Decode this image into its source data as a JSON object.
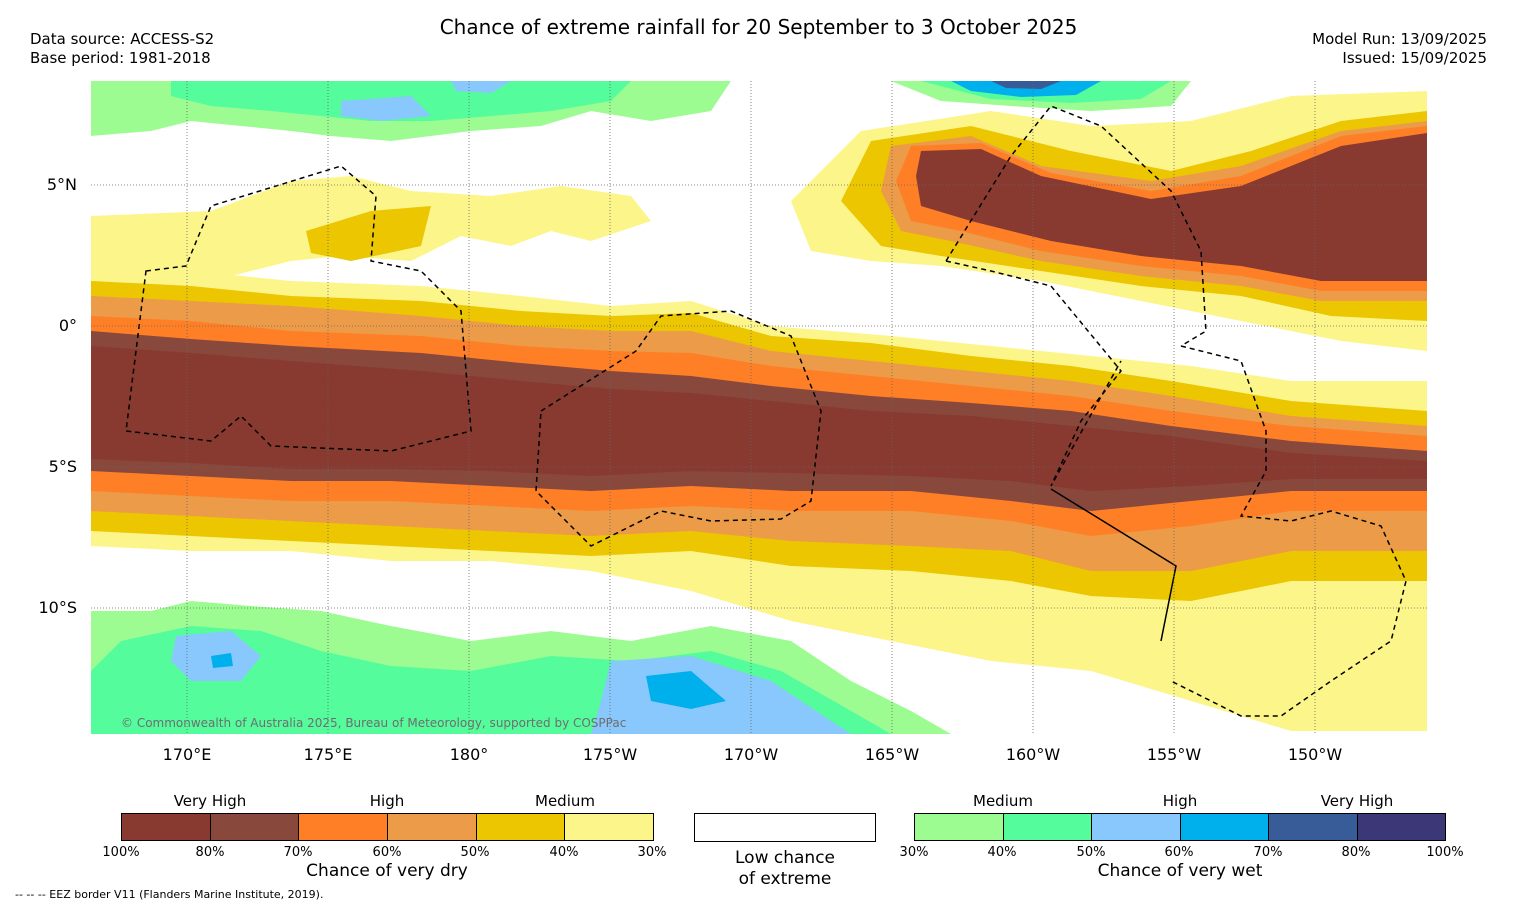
{
  "header": {
    "title": "Chance of extreme rainfall for 20 September to 3 October 2025",
    "data_source": "Data source: ACCESS-S2",
    "base_period": "Base period: 1981-2018",
    "model_run": "Model Run: 13/09/2025",
    "issued": "Issued: 15/09/2025"
  },
  "map": {
    "lat_labels": [
      "5°N",
      "0°",
      "5°S",
      "10°S"
    ],
    "lon_labels": [
      "170°E",
      "175°E",
      "180°",
      "175°W",
      "170°W",
      "165°W",
      "160°W",
      "155°W",
      "150°W"
    ],
    "copyright": "© Commonwealth of Australia 2025, Bureau of Meteorology, supported by COSPPac",
    "colors": {
      "dry_very_high_100_80": "#883a30",
      "dry_very_high_80_70": "#88483c",
      "dry_high_70_60": "#ff7f27",
      "dry_high_60_50": "#ec9b48",
      "dry_medium_50_40": "#ecc600",
      "dry_medium_40_30": "#fcf58a",
      "wet_medium_30_40": "#9cfc92",
      "wet_medium_40_50": "#54fc9c",
      "wet_high_50_60": "#88c8fc",
      "wet_high_60_70": "#00b0ec",
      "wet_very_high_70_80": "#385c98",
      "wet_very_high_80_100": "#3c3878"
    }
  },
  "legend": {
    "dry": {
      "group_labels": [
        "Very High",
        "High",
        "Medium"
      ],
      "ticks": [
        "100%",
        "80%",
        "70%",
        "60%",
        "50%",
        "40%",
        "30%"
      ],
      "caption": "Chance of very dry",
      "colors": [
        "#883a30",
        "#88483c",
        "#ff7f27",
        "#ec9b48",
        "#ecc600",
        "#fcf58a"
      ]
    },
    "low": {
      "caption_line1": "Low chance",
      "caption_line2": "of extreme"
    },
    "wet": {
      "group_labels": [
        "Medium",
        "High",
        "Very High"
      ],
      "ticks": [
        "30%",
        "40%",
        "50%",
        "60%",
        "70%",
        "80%",
        "100%"
      ],
      "caption": "Chance of very wet",
      "colors": [
        "#9cfc92",
        "#54fc9c",
        "#88c8fc",
        "#00b0ec",
        "#385c98",
        "#3c3878"
      ]
    }
  },
  "footnote": "--  --  -- EEZ border V11 (Flanders Marine Institute, 2019)."
}
